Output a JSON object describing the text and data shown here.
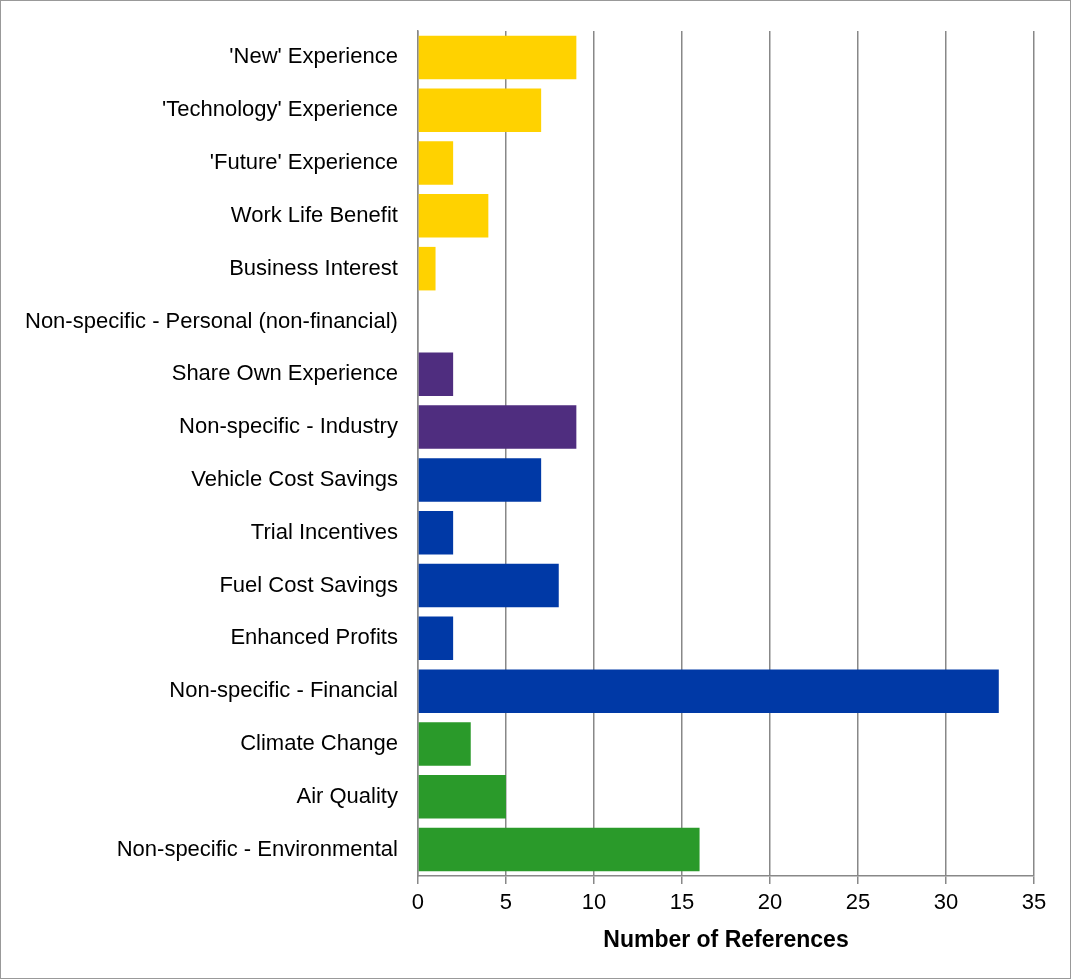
{
  "chart_data": {
    "type": "bar",
    "orientation": "horizontal",
    "categories": [
      "'New' Experience",
      "'Technology' Experience",
      "'Future' Experience",
      "Work Life Benefit",
      "Business Interest",
      "Non-specific - Personal (non-financial)",
      "Share Own Experience",
      "Non-specific - Industry",
      "Vehicle Cost Savings",
      "Trial Incentives",
      "Fuel Cost Savings",
      "Enhanced Profits",
      "Non-specific - Financial",
      "Climate Change",
      "Air Quality",
      "Non-specific - Environmental"
    ],
    "values": [
      9,
      7,
      2,
      4,
      1,
      0,
      2,
      9,
      7,
      2,
      8,
      2,
      33,
      3,
      5,
      16
    ],
    "colors": [
      "#ffd200",
      "#ffd200",
      "#ffd200",
      "#ffd200",
      "#ffd200",
      "#ffd200",
      "#4f2d7f",
      "#4f2d7f",
      "#0039a6",
      "#0039a6",
      "#0039a6",
      "#0039a6",
      "#0039a6",
      "#2a9a2a",
      "#2a9a2a",
      "#2a9a2a"
    ],
    "xlabel": "Number of References",
    "xlim": [
      0,
      35
    ],
    "xticks": [
      0,
      5,
      10,
      15,
      20,
      25,
      30,
      35
    ],
    "grid": "x",
    "legend": false
  }
}
